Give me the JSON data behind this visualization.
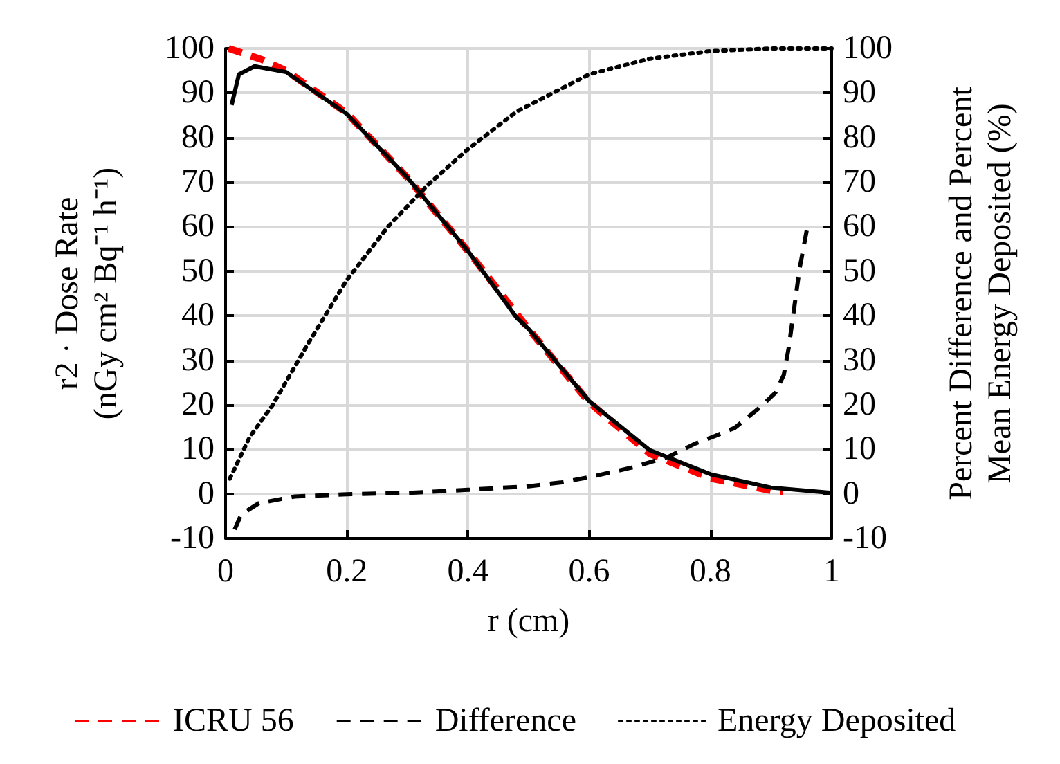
{
  "chart_data": {
    "type": "line",
    "xlabel": "r (cm)",
    "ylabel": "r2 · Dose Rate\n(nGy cm² Bq⁻¹ h⁻¹)",
    "y2label": "Percent Difference and Percent\nMean Energy Deposited (%)",
    "xlim": [
      0,
      1
    ],
    "xticks": [
      0,
      0.2,
      0.4,
      0.6,
      0.8,
      1
    ],
    "ylim": [
      -10,
      100
    ],
    "yticks": [
      -10,
      0,
      10,
      20,
      30,
      40,
      50,
      60,
      70,
      80,
      90,
      100
    ],
    "y2lim": [
      -10,
      100
    ],
    "y2ticks": [
      -10,
      0,
      10,
      20,
      30,
      40,
      50,
      60,
      70,
      80,
      90,
      100
    ],
    "grid": true,
    "legend": "bottom",
    "marker": "none",
    "series": [
      {
        "name": "ICRU 56",
        "color": "#ff0000",
        "line_style": "dashed",
        "x": [
          0.005,
          0.06,
          0.1,
          0.2,
          0.3,
          0.4,
          0.5,
          0.6,
          0.7,
          0.8,
          0.9,
          0.92
        ],
        "values": [
          100,
          97.5,
          95,
          85.5,
          71,
          54.5,
          37,
          20.5,
          9,
          3.5,
          0.7,
          0.4
        ]
      },
      {
        "color": "#000000",
        "line_style": "solid",
        "x": [
          0.01,
          0.022,
          0.048,
          0.1,
          0.2,
          0.3,
          0.4,
          0.48,
          0.5,
          0.6,
          0.7,
          0.8,
          0.9,
          1.0
        ],
        "values": [
          87.3,
          94.2,
          96,
          94.7,
          85.3,
          71,
          54.5,
          39.6,
          37,
          20.8,
          9.8,
          4.4,
          1.4,
          0.2
        ]
      },
      {
        "name": "Difference",
        "color": "#000000",
        "line_style": "dashed",
        "x": [
          0.015,
          0.026,
          0.055,
          0.114,
          0.2,
          0.3,
          0.4,
          0.5,
          0.555,
          0.606,
          0.67,
          0.73,
          0.775,
          0.804,
          0.84,
          0.885,
          0.907,
          0.921,
          0.929,
          0.936,
          0.947,
          0.96
        ],
        "values": [
          -8,
          -4.6,
          -2.1,
          -0.6,
          -0.1,
          0.2,
          0.9,
          1.7,
          2.6,
          3.9,
          5.9,
          8.3,
          11.3,
          12.8,
          14.8,
          19.8,
          22.7,
          26.7,
          32.7,
          39.6,
          50.5,
          60
        ]
      },
      {
        "name": "Energy Deposited",
        "color": "#000000",
        "line_style": "dotted",
        "x": [
          0.007,
          0.04,
          0.077,
          0.136,
          0.2,
          0.268,
          0.334,
          0.4,
          0.48,
          0.6,
          0.7,
          0.8,
          0.9,
          1.0
        ],
        "values": [
          3.4,
          12.8,
          19.8,
          33.7,
          48,
          60,
          69.4,
          77.4,
          85.8,
          94.2,
          97.7,
          99.4,
          100,
          100
        ]
      }
    ]
  }
}
